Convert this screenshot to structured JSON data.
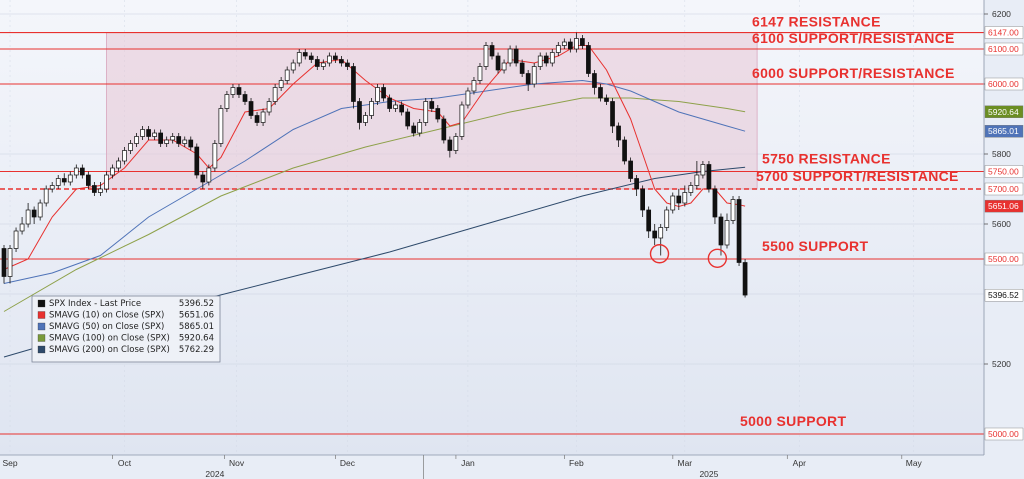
{
  "chart_data": {
    "type": "candlestick",
    "title": "",
    "ylim": [
      4940,
      6240
    ],
    "y_ticks": [
      "6200",
      "6000",
      "5800",
      "5600",
      "5200"
    ],
    "x_months": [
      {
        "label": "Sep",
        "pos": 0.5
      },
      {
        "label": "Oct",
        "pos": 10
      },
      {
        "label": "Nov",
        "pos": 19.3
      },
      {
        "label": "Dec",
        "pos": 28.5
      },
      {
        "label": "Jan",
        "pos": 38.5
      },
      {
        "label": "Feb",
        "pos": 47.5
      },
      {
        "label": "Mar",
        "pos": 56.5
      },
      {
        "label": "Apr",
        "pos": 66
      },
      {
        "label": "May",
        "pos": 75.5
      }
    ],
    "x_years": [
      {
        "label": "2024",
        "pos": 17.5
      },
      {
        "label": "2025",
        "pos": 58.5
      }
    ],
    "levels": [
      {
        "label": "6147 RESISTANCE",
        "value": 6147,
        "tag": "6147.00",
        "style": "solid"
      },
      {
        "label": "6100 SUPPORT/RESISTANCE",
        "value": 6100,
        "tag": "6100.00",
        "style": "solid"
      },
      {
        "label": "6000 SUPPORT/RESISTANCE",
        "value": 6000,
        "tag": "6000.00",
        "style": "solid"
      },
      {
        "label": "5750 RESISTANCE",
        "value": 5750,
        "tag": "5750.00",
        "style": "solid"
      },
      {
        "label": "5700 SUPPORT/RESISTANCE",
        "value": 5700,
        "tag": "5700.00",
        "style": "dashed"
      },
      {
        "label": "5500 SUPPORT",
        "value": 5500,
        "tag": "5500.00",
        "style": "solid"
      },
      {
        "label": "5000 SUPPORT",
        "value": 5000,
        "tag": "5000.00",
        "style": "solid"
      }
    ],
    "value_tags": [
      {
        "text": "5920.64",
        "value": 5920.64,
        "color": "#6b8e23"
      },
      {
        "text": "5865.01",
        "value": 5865.01,
        "color": "#4f73b8"
      },
      {
        "text": "5651.06",
        "value": 5651.06,
        "color": "#e8312f"
      },
      {
        "text": "5396.52",
        "value": 5396.52,
        "color": "#111111"
      }
    ],
    "legend": [
      {
        "name": "SPX Index - Last Price",
        "value": "5396.52",
        "color": "#111111"
      },
      {
        "name": "SMAVG (10)  on Close (SPX)",
        "value": "5651.06",
        "color": "#e8312f"
      },
      {
        "name": "SMAVG (50)  on Close (SPX)",
        "value": "5865.01",
        "color": "#4f73b8"
      },
      {
        "name": "SMAVG (100)  on Close (SPX)",
        "value": "5920.64",
        "color": "#7a9a3a"
      },
      {
        "name": "SMAVG (200)  on Close (SPX)",
        "value": "5762.29",
        "color": "#2e4a6b"
      }
    ],
    "shaded_range": {
      "x_start": 8.5,
      "x_end": 62.5,
      "y_low": 5700,
      "y_high": 6147
    },
    "circles": [
      {
        "x": 54.4,
        "y": 5515
      },
      {
        "x": 59.2,
        "y": 5502
      }
    ],
    "candles": [
      [
        0,
        5530,
        5450,
        5540,
        5430
      ],
      [
        0.5,
        5450,
        5530,
        5540,
        5430
      ],
      [
        1,
        5530,
        5580,
        5590,
        5520
      ],
      [
        1.5,
        5580,
        5600,
        5620,
        5570
      ],
      [
        2,
        5600,
        5640,
        5660,
        5590
      ],
      [
        2.5,
        5640,
        5620,
        5650,
        5600
      ],
      [
        3,
        5620,
        5660,
        5670,
        5610
      ],
      [
        3.5,
        5660,
        5700,
        5710,
        5650
      ],
      [
        4,
        5700,
        5710,
        5720,
        5690
      ],
      [
        4.5,
        5710,
        5730,
        5740,
        5700
      ],
      [
        5,
        5730,
        5720,
        5745,
        5710
      ],
      [
        5.5,
        5720,
        5740,
        5750,
        5710
      ],
      [
        6,
        5740,
        5760,
        5770,
        5730
      ],
      [
        6.5,
        5760,
        5740,
        5770,
        5730
      ],
      [
        7,
        5740,
        5710,
        5750,
        5700
      ],
      [
        7.5,
        5710,
        5690,
        5720,
        5680
      ],
      [
        8,
        5690,
        5700,
        5720,
        5680
      ],
      [
        8.5,
        5700,
        5740,
        5750,
        5690
      ],
      [
        9,
        5740,
        5760,
        5770,
        5730
      ],
      [
        9.5,
        5760,
        5780,
        5790,
        5750
      ],
      [
        10,
        5780,
        5810,
        5820,
        5770
      ],
      [
        10.5,
        5810,
        5830,
        5840,
        5800
      ],
      [
        11,
        5830,
        5850,
        5860,
        5820
      ],
      [
        11.5,
        5850,
        5870,
        5880,
        5840
      ],
      [
        12,
        5870,
        5850,
        5880,
        5840
      ],
      [
        12.5,
        5850,
        5860,
        5870,
        5840
      ],
      [
        13,
        5860,
        5830,
        5870,
        5820
      ],
      [
        13.5,
        5830,
        5840,
        5850,
        5820
      ],
      [
        14,
        5840,
        5850,
        5860,
        5830
      ],
      [
        14.5,
        5850,
        5830,
        5860,
        5820
      ],
      [
        15,
        5830,
        5840,
        5850,
        5820
      ],
      [
        15.5,
        5840,
        5820,
        5850,
        5810
      ],
      [
        16,
        5820,
        5740,
        5830,
        5730
      ],
      [
        16.5,
        5740,
        5720,
        5750,
        5700
      ],
      [
        17,
        5720,
        5760,
        5770,
        5710
      ],
      [
        17.5,
        5760,
        5830,
        5840,
        5750
      ],
      [
        18,
        5830,
        5930,
        5940,
        5820
      ],
      [
        18.5,
        5930,
        5970,
        5980,
        5920
      ],
      [
        19,
        5970,
        5990,
        6000,
        5960
      ],
      [
        19.5,
        5990,
        5970,
        6000,
        5960
      ],
      [
        20,
        5970,
        5950,
        5980,
        5940
      ],
      [
        20.5,
        5950,
        5910,
        5960,
        5900
      ],
      [
        21,
        5910,
        5890,
        5920,
        5880
      ],
      [
        21.5,
        5890,
        5920,
        5930,
        5880
      ],
      [
        22,
        5920,
        5950,
        5960,
        5910
      ],
      [
        22.5,
        5950,
        5990,
        6000,
        5940
      ],
      [
        23,
        5990,
        6010,
        6020,
        5980
      ],
      [
        23.5,
        6010,
        6040,
        6050,
        6000
      ],
      [
        24,
        6040,
        6060,
        6070,
        6030
      ],
      [
        24.5,
        6060,
        6090,
        6100,
        6050
      ],
      [
        25,
        6090,
        6080,
        6100,
        6070
      ],
      [
        25.5,
        6080,
        6070,
        6090,
        6060
      ],
      [
        26,
        6070,
        6050,
        6080,
        6040
      ],
      [
        26.5,
        6050,
        6060,
        6070,
        6040
      ],
      [
        27,
        6060,
        6080,
        6090,
        6050
      ],
      [
        27.5,
        6080,
        6070,
        6090,
        6060
      ],
      [
        28,
        6070,
        6060,
        6080,
        6050
      ],
      [
        28.5,
        6060,
        6050,
        6070,
        6040
      ],
      [
        29,
        6050,
        5950,
        6060,
        5930
      ],
      [
        29.5,
        5950,
        5890,
        5960,
        5870
      ],
      [
        30,
        5890,
        5910,
        5920,
        5880
      ],
      [
        30.5,
        5910,
        5950,
        5960,
        5900
      ],
      [
        31,
        5950,
        5990,
        6000,
        5940
      ],
      [
        31.5,
        5990,
        5960,
        6000,
        5950
      ],
      [
        32,
        5960,
        5930,
        5970,
        5920
      ],
      [
        32.5,
        5930,
        5940,
        5950,
        5920
      ],
      [
        33,
        5940,
        5920,
        5950,
        5910
      ],
      [
        33.5,
        5920,
        5880,
        5930,
        5870
      ],
      [
        34,
        5880,
        5860,
        5890,
        5850
      ],
      [
        34.5,
        5860,
        5890,
        5900,
        5850
      ],
      [
        35,
        5890,
        5950,
        5960,
        5880
      ],
      [
        35.5,
        5950,
        5930,
        5960,
        5920
      ],
      [
        36,
        5930,
        5900,
        5940,
        5890
      ],
      [
        36.5,
        5900,
        5840,
        5910,
        5830
      ],
      [
        37,
        5840,
        5810,
        5850,
        5790
      ],
      [
        37.5,
        5810,
        5850,
        5860,
        5800
      ],
      [
        38,
        5850,
        5940,
        5950,
        5840
      ],
      [
        38.5,
        5940,
        5980,
        5990,
        5930
      ],
      [
        39,
        5980,
        6010,
        6020,
        5970
      ],
      [
        39.5,
        6010,
        6050,
        6060,
        6000
      ],
      [
        40,
        6050,
        6110,
        6120,
        6040
      ],
      [
        40.5,
        6110,
        6080,
        6120,
        6070
      ],
      [
        41,
        6080,
        6040,
        6090,
        6030
      ],
      [
        41.5,
        6040,
        6060,
        6070,
        6030
      ],
      [
        42,
        6060,
        6100,
        6110,
        6050
      ],
      [
        42.5,
        6100,
        6060,
        6110,
        6050
      ],
      [
        43,
        6060,
        6030,
        6070,
        6020
      ],
      [
        43.5,
        6030,
        6000,
        6040,
        5980
      ],
      [
        44,
        6000,
        6050,
        6060,
        5990
      ],
      [
        44.5,
        6050,
        6080,
        6090,
        6040
      ],
      [
        45,
        6080,
        6060,
        6090,
        6050
      ],
      [
        45.5,
        6060,
        6090,
        6100,
        6050
      ],
      [
        46,
        6090,
        6110,
        6120,
        6080
      ],
      [
        46.5,
        6110,
        6120,
        6130,
        6100
      ],
      [
        47,
        6120,
        6100,
        6130,
        6090
      ],
      [
        47.5,
        6100,
        6130,
        6147,
        6090
      ],
      [
        48,
        6130,
        6110,
        6140,
        6100
      ],
      [
        48.5,
        6110,
        6030,
        6120,
        6020
      ],
      [
        49,
        6030,
        5990,
        6040,
        5970
      ],
      [
        49.5,
        5990,
        5960,
        6000,
        5950
      ],
      [
        50,
        5960,
        5950,
        5970,
        5940
      ],
      [
        50.5,
        5950,
        5880,
        5960,
        5860
      ],
      [
        51,
        5880,
        5840,
        5890,
        5820
      ],
      [
        51.5,
        5840,
        5780,
        5850,
        5770
      ],
      [
        52,
        5780,
        5730,
        5790,
        5720
      ],
      [
        52.5,
        5730,
        5700,
        5740,
        5680
      ],
      [
        53,
        5700,
        5640,
        5710,
        5620
      ],
      [
        53.5,
        5640,
        5580,
        5650,
        5560
      ],
      [
        54,
        5580,
        5560,
        5600,
        5540
      ],
      [
        54.5,
        5560,
        5590,
        5600,
        5510
      ],
      [
        55,
        5590,
        5640,
        5650,
        5580
      ],
      [
        55.5,
        5640,
        5680,
        5690,
        5630
      ],
      [
        56,
        5680,
        5660,
        5700,
        5640
      ],
      [
        56.5,
        5660,
        5690,
        5710,
        5650
      ],
      [
        57,
        5690,
        5710,
        5720,
        5680
      ],
      [
        57.5,
        5710,
        5740,
        5780,
        5700
      ],
      [
        58,
        5740,
        5770,
        5780,
        5730
      ],
      [
        58.5,
        5770,
        5700,
        5780,
        5690
      ],
      [
        59,
        5700,
        5620,
        5710,
        5600
      ],
      [
        59.5,
        5620,
        5540,
        5630,
        5510
      ],
      [
        60,
        5540,
        5610,
        5630,
        5530
      ],
      [
        60.5,
        5610,
        5670,
        5680,
        5600
      ],
      [
        61,
        5670,
        5490,
        5680,
        5480
      ],
      [
        61.5,
        5490,
        5397,
        5500,
        5390
      ]
    ],
    "sma10": [
      [
        0,
        5470
      ],
      [
        2,
        5500
      ],
      [
        4,
        5620
      ],
      [
        6,
        5700
      ],
      [
        8,
        5710
      ],
      [
        10,
        5760
      ],
      [
        12,
        5840
      ],
      [
        14,
        5840
      ],
      [
        16,
        5800
      ],
      [
        17,
        5760
      ],
      [
        18,
        5790
      ],
      [
        20,
        5920
      ],
      [
        22,
        5930
      ],
      [
        24,
        6000
      ],
      [
        26,
        6060
      ],
      [
        28,
        6070
      ],
      [
        30,
        6010
      ],
      [
        32,
        5960
      ],
      [
        34,
        5930
      ],
      [
        36,
        5920
      ],
      [
        37,
        5880
      ],
      [
        38,
        5890
      ],
      [
        40,
        5990
      ],
      [
        42,
        6070
      ],
      [
        44,
        6060
      ],
      [
        46,
        6080
      ],
      [
        47.5,
        6110
      ],
      [
        48.5,
        6110
      ],
      [
        50,
        6040
      ],
      [
        52,
        5900
      ],
      [
        53,
        5800
      ],
      [
        54,
        5700
      ],
      [
        55,
        5660
      ],
      [
        56,
        5650
      ],
      [
        57,
        5660
      ],
      [
        58,
        5700
      ],
      [
        59,
        5700
      ],
      [
        60,
        5660
      ],
      [
        61,
        5655
      ],
      [
        61.5,
        5651.06
      ]
    ],
    "sma50": [
      [
        0,
        5430
      ],
      [
        4,
        5460
      ],
      [
        8,
        5510
      ],
      [
        12,
        5620
      ],
      [
        16,
        5700
      ],
      [
        20,
        5780
      ],
      [
        24,
        5870
      ],
      [
        28,
        5930
      ],
      [
        32,
        5950
      ],
      [
        36,
        5960
      ],
      [
        40,
        5980
      ],
      [
        44,
        6000
      ],
      [
        48,
        6010
      ],
      [
        50,
        6000
      ],
      [
        52,
        5980
      ],
      [
        54,
        5950
      ],
      [
        56,
        5920
      ],
      [
        58,
        5900
      ],
      [
        60,
        5880
      ],
      [
        61.5,
        5865.01
      ]
    ],
    "sma100": [
      [
        0,
        5350
      ],
      [
        6,
        5470
      ],
      [
        12,
        5570
      ],
      [
        18,
        5680
      ],
      [
        24,
        5760
      ],
      [
        30,
        5820
      ],
      [
        36,
        5870
      ],
      [
        42,
        5920
      ],
      [
        48,
        5960
      ],
      [
        52,
        5960
      ],
      [
        56,
        5950
      ],
      [
        60,
        5930
      ],
      [
        61.5,
        5920.64
      ]
    ],
    "sma200": [
      [
        0,
        5220
      ],
      [
        8,
        5300
      ],
      [
        16,
        5380
      ],
      [
        24,
        5450
      ],
      [
        32,
        5520
      ],
      [
        40,
        5600
      ],
      [
        48,
        5680
      ],
      [
        54,
        5730
      ],
      [
        58,
        5750
      ],
      [
        61.5,
        5762.29
      ]
    ]
  }
}
